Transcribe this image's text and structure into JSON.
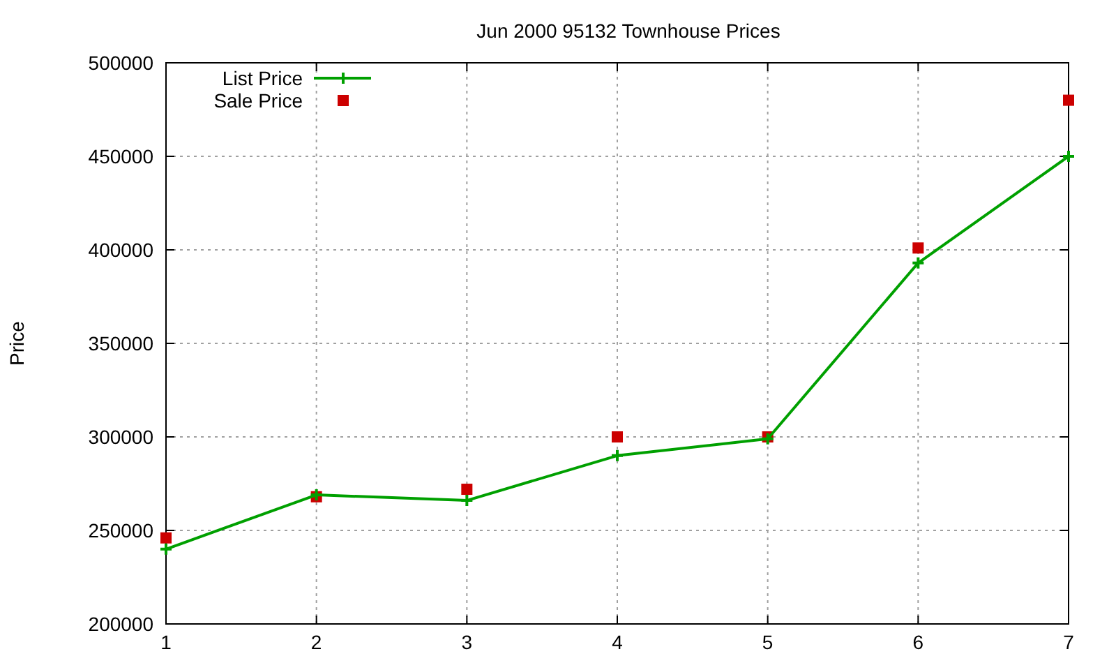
{
  "chart_data": {
    "type": "line",
    "title": "Jun 2000 95132 Townhouse Prices",
    "ylabel": "Price",
    "x": [
      1,
      2,
      3,
      4,
      5,
      6,
      7
    ],
    "series": [
      {
        "name": "List Price",
        "color": "#00a000",
        "marker": "cross",
        "values": [
          240000,
          269000,
          266000,
          290000,
          299000,
          393000,
          450000
        ]
      },
      {
        "name": "Sale Price",
        "type": "scatter",
        "color": "#cc0000",
        "marker": "square",
        "values": [
          246000,
          268000,
          272000,
          300000,
          300000,
          401000,
          480000
        ]
      }
    ],
    "xlim": [
      1,
      7
    ],
    "xticks": [
      1,
      2,
      3,
      4,
      5,
      6,
      7
    ],
    "ylim": [
      200000,
      500000
    ],
    "yticks": [
      200000,
      250000,
      300000,
      350000,
      400000,
      450000,
      500000
    ],
    "grid": true,
    "legend": "top left"
  }
}
